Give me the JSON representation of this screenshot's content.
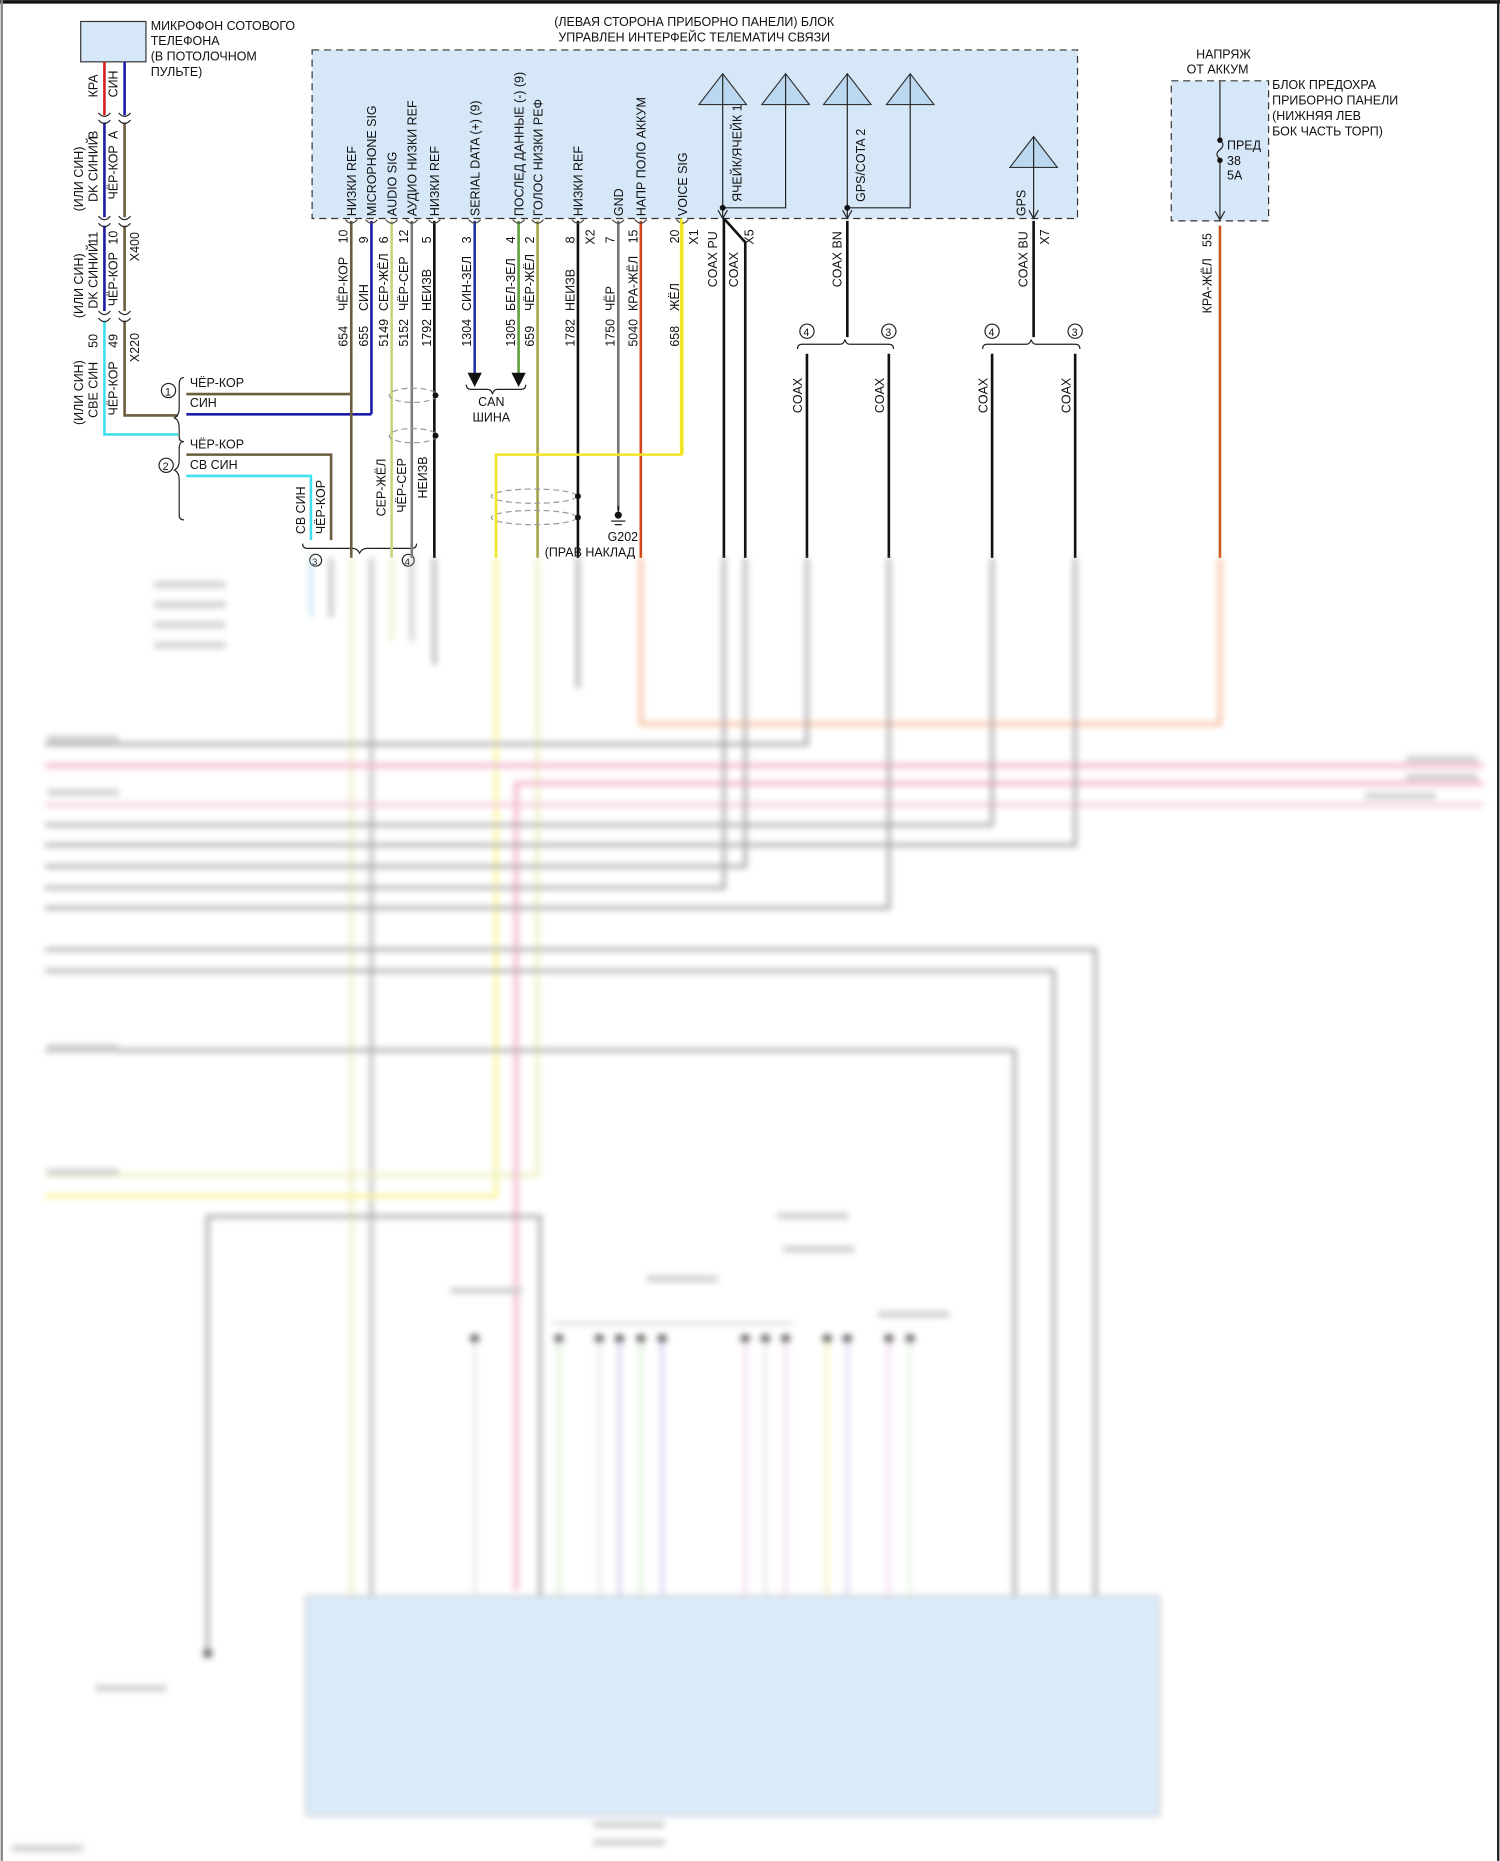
{
  "microphone": {
    "lines": [
      "МИКРОФОН СОТОВОГО",
      "ТЕЛЕФОНА",
      "(В ПОТОЛОЧНОМ",
      "ПУЛЬТЕ)"
    ],
    "wire_red": "КРА",
    "wire_blue": "СИН",
    "pin_b": "B",
    "pin_a": "A",
    "alt_dk_1": "(ИЛИ СИН)",
    "alt_dk_2": "DK СИНИЙ",
    "color_brown": "ЧЁР-КОР",
    "pin_11": "11",
    "pin_10": "10",
    "conn_x400": "X400",
    "pin_50": "50",
    "pin_49": "49",
    "conn_x220": "X220",
    "alt_sve_1": "(ИЛИ СИН)",
    "alt_sve_2": "СВЕ СИН"
  },
  "splice": {
    "group1_num": "1",
    "group1_a": "ЧЁР-КОР",
    "group1_b": "СИН",
    "group2_num": "2",
    "group2_a": "ЧЁР-КОР",
    "group2_b": "СВ СИН",
    "down_a": "СВ СИН",
    "down_b": "ЧЁР-КОР",
    "down_c": "СЕР-ЖЁЛ",
    "down_d": "ЧЁР-СЕР",
    "down_e": "НЕИЗВ",
    "bottom_num_a": "3",
    "bottom_num_b": "4"
  },
  "module": {
    "title_1": "(ЛЕВАЯ СТОРОНА ПРИБОРНО ПАНЕЛИ) БЛОК",
    "title_2": "УПРАВЛЕН ИНТЕРФЕЙС ТЕЛЕМАТИЧ СВЯЗИ",
    "pins": [
      {
        "label": "НИЗКИ REF",
        "pin": "10",
        "color": "ЧЁР-КОР",
        "circuit": "654",
        "stroke": "#6b5d3e"
      },
      {
        "label": "MICROPHONE SIG",
        "pin": "9",
        "color": "СИН",
        "circuit": "655",
        "stroke": "#1c1ca8"
      },
      {
        "label": "AUDIO SIG",
        "pin": "6",
        "color": "СЕР-ЖЁЛ",
        "circuit": "5149",
        "stroke": "#c9d27e"
      },
      {
        "label": "АУДИО НИЗКИ REF",
        "pin": "12",
        "color": "ЧЁР-СЕР",
        "circuit": "5152",
        "stroke": "#7d7d7d"
      },
      {
        "label": "НИЗКИ REF",
        "pin": "5",
        "color": "НЕИЗВ",
        "circuit": "1792",
        "stroke": "#111111"
      },
      {
        "label": "SERIAL DATA (+) (9)",
        "pin": "3",
        "color": "СИН-ЗЕЛ",
        "circuit": "1304",
        "stroke": "#2233a8"
      },
      {
        "label": "ПОСЛЕД ДАННЫЕ (-) (9)",
        "pin": "4",
        "color": "БЕЛ-ЗЕЛ",
        "circuit": "1305",
        "stroke": "#5fa040"
      },
      {
        "label": "ГОЛОС НИЗКИ РЕФ",
        "pin": "2",
        "color": "ЧЁР-ЖЁЛ",
        "circuit": "659",
        "stroke": "#a3a34a"
      },
      {
        "label": "НИЗКИ REF",
        "pin": "8",
        "color": "НЕИЗВ",
        "circuit": "1782",
        "stroke": "#111111"
      },
      {
        "label": "GND",
        "pin": "7",
        "color": "ЧЁР",
        "circuit": "1750",
        "stroke": "#777777"
      },
      {
        "label": "НАПР ПОЛО АККУМ",
        "pin": "15",
        "color": "КРА-ЖЁЛ",
        "circuit": "5040",
        "stroke": "#d2461a"
      },
      {
        "label": "VOICE SIG",
        "pin": "20",
        "color": "ЖЁЛ",
        "circuit": "658",
        "stroke": "#f2e526"
      }
    ],
    "connector_x2": "X2",
    "connector_x1": "X1",
    "connector_x5": "X5",
    "connector_x7": "X7",
    "antenna_cell_label": "ЯЧЕЙК/ЯЧЕЙК 1",
    "antenna_gps2_label": "GPS/COTA 2",
    "antenna_gps_label": "GPS",
    "coax_pu": "COAX PU",
    "coax": "COAX",
    "coax_bn": "COAX BN",
    "coax_bu": "COAX BU",
    "can_1": "CAN",
    "can_2": "ШИНА",
    "ground_id": "G202",
    "ground_loc": "(ПРАВ НАКЛАД",
    "branch_4": "4",
    "branch_3": "3"
  },
  "fuse_block": {
    "supply_1": "НАПРЯЖ",
    "supply_2": "ОТ АККУМ",
    "title": [
      "БЛОК ПРЕДОХРА",
      "ПРИБОРНО ПАНЕЛИ",
      "(НИЖНЯЯ ЛЕВ",
      "БОК ЧАСТЬ ТОРП)"
    ],
    "fuse_name": "ПРЕД",
    "fuse_num": "38",
    "fuse_rating": "5A",
    "pin": "55",
    "wire_color": "КРА-ЖЁЛ"
  },
  "colors": {
    "module_fill": "#d6e8f8",
    "red": "#d42020",
    "blue": "#1c1ca8",
    "cyan": "#3ee0ee",
    "brown": "#6b5d3e",
    "yellow": "#f2e526",
    "orange": "#d2461a",
    "pink": "#f08cb0"
  }
}
